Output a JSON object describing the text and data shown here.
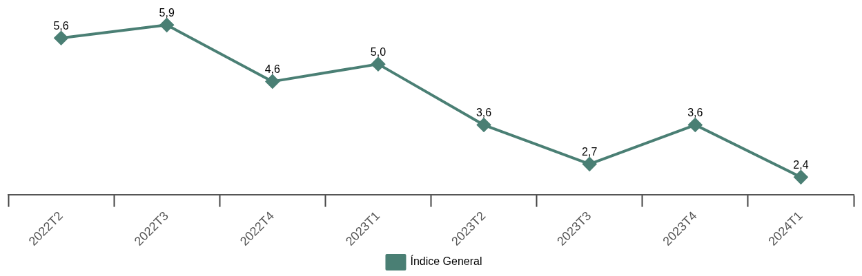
{
  "chart_data": {
    "type": "line",
    "categories": [
      "2022T2",
      "2022T3",
      "2022T4",
      "2023T1",
      "2023T2",
      "2023T3",
      "2023T4",
      "2024T1"
    ],
    "series": [
      {
        "name": "Índice General",
        "color": "#4a7f74",
        "values": [
          5.6,
          5.9,
          4.6,
          5.0,
          3.6,
          2.7,
          3.6,
          2.4
        ],
        "value_labels": [
          "5,6",
          "5,9",
          "4,6",
          "5,0",
          "3,6",
          "2,7",
          "3,6",
          "2,4"
        ]
      }
    ],
    "tick_labels": "x",
    "grid": false,
    "legend": "bottom",
    "marker": "diamond",
    "line_style": "solid"
  }
}
